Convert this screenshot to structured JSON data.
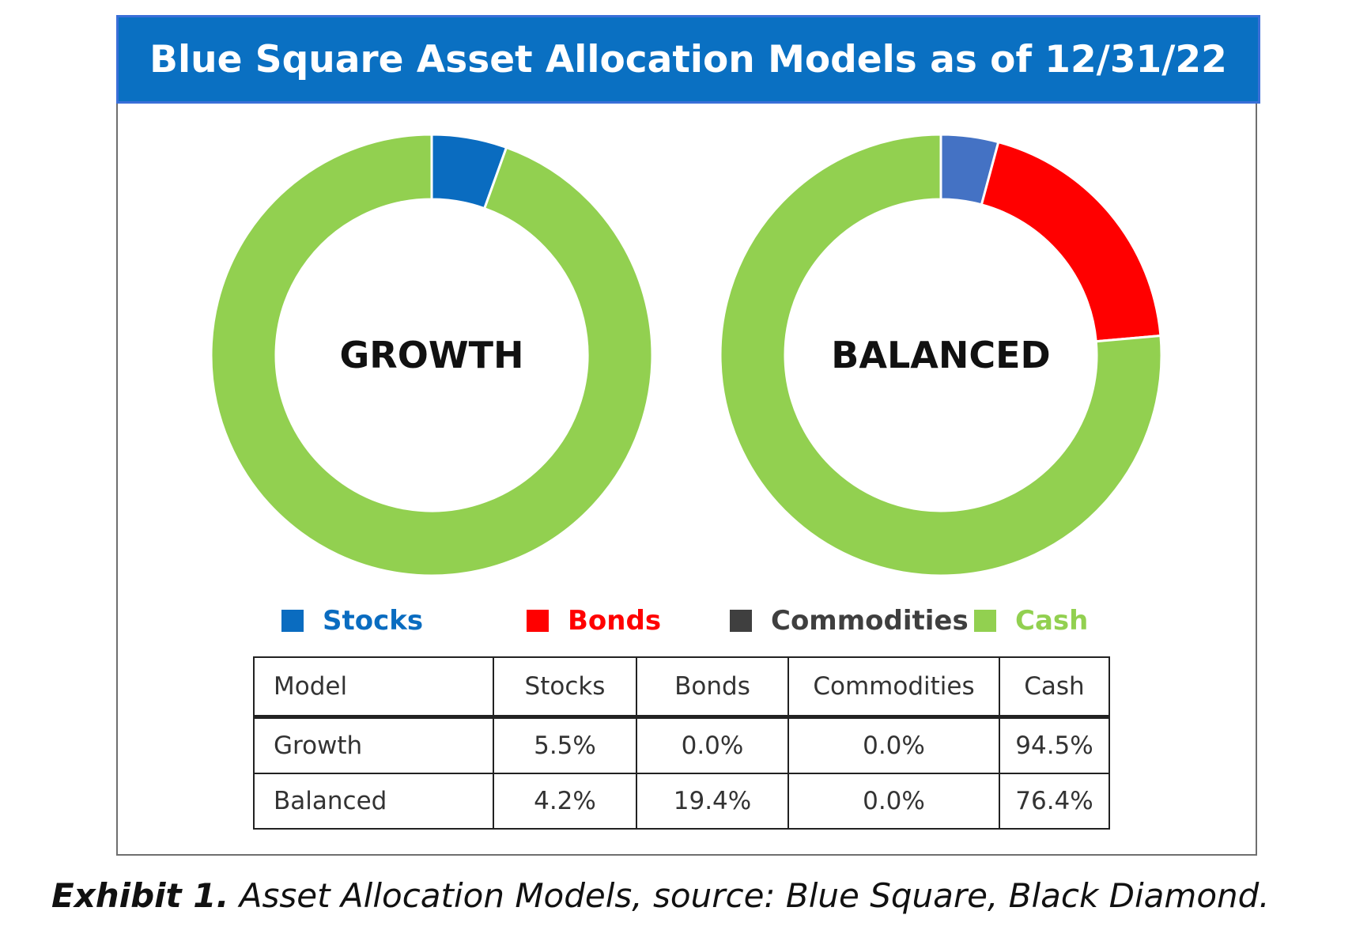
{
  "header": {
    "title": "Blue Square Asset Allocation Models as of 12/31/22"
  },
  "colors": {
    "stocks": "#0a6cc0",
    "stocks_balanced": "#4472c4",
    "bonds": "#ff0000",
    "commodities": "#3f3f3f",
    "cash": "#92d050",
    "title_bar": "#0a70c2"
  },
  "chart_data": [
    {
      "type": "pie",
      "style": "donut",
      "center_label": "GROWTH",
      "categories": [
        "Stocks",
        "Bonds",
        "Commodities",
        "Cash"
      ],
      "values": [
        5.5,
        0.0,
        0.0,
        94.5
      ]
    },
    {
      "type": "pie",
      "style": "donut",
      "center_label": "BALANCED",
      "categories": [
        "Stocks",
        "Bonds",
        "Commodities",
        "Cash"
      ],
      "values": [
        4.2,
        19.4,
        0.0,
        76.4
      ]
    }
  ],
  "legend": {
    "items": [
      {
        "label": "Stocks",
        "color": "#0a6cc0"
      },
      {
        "label": "Bonds",
        "color": "#ff0000"
      },
      {
        "label": "Commodities",
        "color": "#3f3f3f"
      },
      {
        "label": "Cash",
        "color": "#92d050"
      }
    ]
  },
  "table": {
    "headers": [
      "Model",
      "Stocks",
      "Bonds",
      "Commodities",
      "Cash"
    ],
    "rows": [
      [
        "Growth",
        "5.5%",
        "0.0%",
        "0.0%",
        "94.5%"
      ],
      [
        "Balanced",
        "4.2%",
        "19.4%",
        "0.0%",
        "76.4%"
      ]
    ]
  },
  "caption": {
    "label": "Exhibit 1.",
    "text": " Asset Allocation Models, source:  Blue Square, Black Diamond."
  }
}
